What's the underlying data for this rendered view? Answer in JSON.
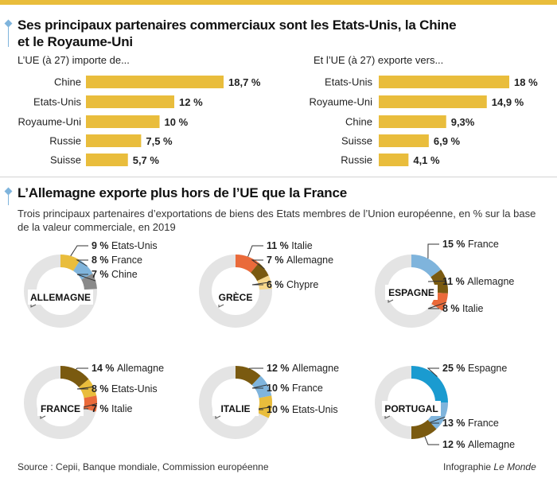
{
  "colors": {
    "accent": "#e9bd3c",
    "blue": "#7fb4dc",
    "blue_dark": "#1a9bd0",
    "brown": "#7a5a10",
    "orange": "#ea6a3a",
    "grey": "#8a8a8a",
    "pale": "#f7d88c",
    "ring": "#e4e4e4"
  },
  "section1": {
    "title_line1": "Ses principaux partenaires commerciaux sont les Etats-Unis, la Chine",
    "title_line2": "et le Royaume-Uni",
    "imports_label": "L’UE (à 27) importe de...",
    "exports_label": "Et l’UE (à 27) exporte vers..."
  },
  "section2": {
    "title": "L’Allemagne exporte plus hors de l’UE que la France",
    "subtitle_line1": "Trois principaux partenaires d’exportations de biens des Etats membres de l’Union européenne, en % sur la base",
    "subtitle_line2": "de la valeur commerciale, en 2019"
  },
  "footer": {
    "source": "Source : Cepii, Banque mondiale, Commission européenne",
    "credit_prefix": "Infographie ",
    "credit_brand": "Le Monde"
  },
  "chart_data": [
    {
      "type": "bar",
      "orientation": "horizontal",
      "title": "L’UE (à 27) importe de...",
      "categories": [
        "Chine",
        "Etats-Unis",
        "Royaume-Uni",
        "Russie",
        "Suisse"
      ],
      "values": [
        18.7,
        12,
        10,
        7.5,
        5.7
      ],
      "labels": [
        "18,7 %",
        "12 %",
        "10 %",
        "7,5 %",
        "5,7 %"
      ],
      "color": "#e9bd3c",
      "xlim": [
        0,
        18.7
      ],
      "grid": false
    },
    {
      "type": "bar",
      "orientation": "horizontal",
      "title": "Et l’UE (à 27) exporte vers...",
      "categories": [
        "Etats-Unis",
        "Royaume-Uni",
        "Chine",
        "Suisse",
        "Russie"
      ],
      "values": [
        18,
        14.9,
        9.3,
        6.9,
        4.1
      ],
      "labels": [
        "18 %",
        "14,9 %",
        "9,3%",
        "6,9 %",
        "4,1 %"
      ],
      "color": "#e9bd3c",
      "xlim": [
        0,
        18.7
      ],
      "grid": false
    },
    {
      "type": "pie",
      "title": "ALLEMAGNE",
      "slices": [
        {
          "name": "Etats-Unis",
          "value": 9,
          "label": "9 %",
          "color": "#e9bd3c"
        },
        {
          "name": "France",
          "value": 8,
          "label": "8 %",
          "color": "#7fb4dc"
        },
        {
          "name": "Chine",
          "value": 7,
          "label": "7 %",
          "color": "#8a8a8a"
        }
      ]
    },
    {
      "type": "pie",
      "title": "GRÈCE",
      "slices": [
        {
          "name": "Italie",
          "value": 11,
          "label": "11 %",
          "color": "#ea6a3a"
        },
        {
          "name": "Allemagne",
          "value": 7,
          "label": "7 %",
          "color": "#7a5a10"
        },
        {
          "name": "Chypre",
          "value": 6,
          "label": "6 %",
          "color": "#f7d88c"
        }
      ]
    },
    {
      "type": "pie",
      "title": "ESPAGNE",
      "slices": [
        {
          "name": "France",
          "value": 15,
          "label": "15 %",
          "color": "#7fb4dc"
        },
        {
          "name": "Allemagne",
          "value": 11,
          "label": "11 %",
          "color": "#7a5a10"
        },
        {
          "name": "Italie",
          "value": 8,
          "label": "8 %",
          "color": "#ea6a3a"
        }
      ]
    },
    {
      "type": "pie",
      "title": "FRANCE",
      "slices": [
        {
          "name": "Allemagne",
          "value": 14,
          "label": "14 %",
          "color": "#7a5a10"
        },
        {
          "name": "Etats-Unis",
          "value": 8,
          "label": "8 %",
          "color": "#e9bd3c"
        },
        {
          "name": "Italie",
          "value": 7,
          "label": "7 %",
          "color": "#ea6a3a"
        }
      ]
    },
    {
      "type": "pie",
      "title": "ITALIE",
      "slices": [
        {
          "name": "Allemagne",
          "value": 12,
          "label": "12 %",
          "color": "#7a5a10"
        },
        {
          "name": "France",
          "value": 10,
          "label": "10 %",
          "color": "#7fb4dc"
        },
        {
          "name": "Etats-Unis",
          "value": 10,
          "label": "10 %",
          "color": "#e9bd3c"
        }
      ]
    },
    {
      "type": "pie",
      "title": "PORTUGAL",
      "slices": [
        {
          "name": "Espagne",
          "value": 25,
          "label": "25 %",
          "color": "#1a9bd0"
        },
        {
          "name": "France",
          "value": 13,
          "label": "13 %",
          "color": "#7fb4dc"
        },
        {
          "name": "Allemagne",
          "value": 12,
          "label": "12 %",
          "color": "#7a5a10"
        }
      ]
    }
  ]
}
